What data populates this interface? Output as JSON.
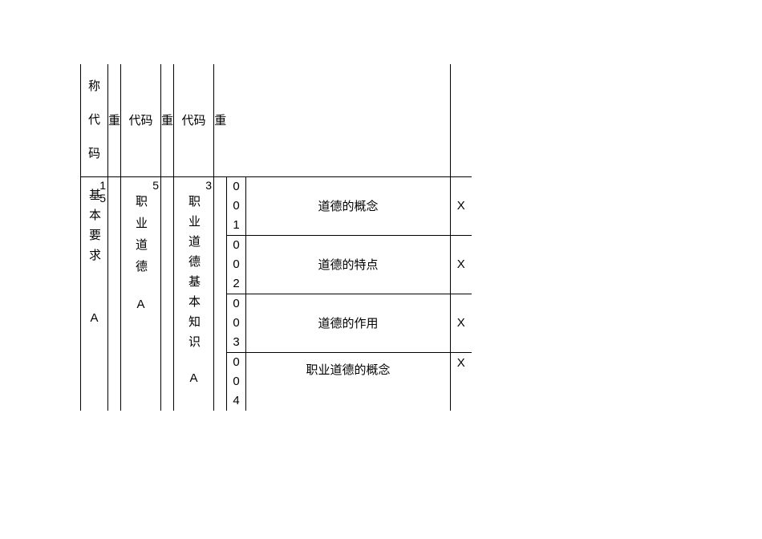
{
  "header": {
    "c1": "称代码",
    "c2": "重",
    "c3": "代码",
    "c4": "重",
    "c5": "代码",
    "c6": "重"
  },
  "body": {
    "col1": {
      "text": "基本要求",
      "suffix": "A",
      "num": "15"
    },
    "col2": {
      "text": "职业道德",
      "suffix": "A",
      "num": "5"
    },
    "col3": {
      "text": "职业道德基本知识",
      "suffix": "A",
      "num": "3"
    }
  },
  "rows": [
    {
      "code": "001",
      "content": "道德的概念",
      "mark": "X"
    },
    {
      "code": "002",
      "content": "道德的特点",
      "mark": "X"
    },
    {
      "code": "003",
      "content": "道德的作用",
      "mark": "X"
    },
    {
      "code": "004",
      "content": "职业道德的概念",
      "mark": "X"
    }
  ],
  "style": {
    "font_size": 15,
    "border_color": "#000000",
    "background": "#ffffff",
    "text_color": "#000000"
  }
}
